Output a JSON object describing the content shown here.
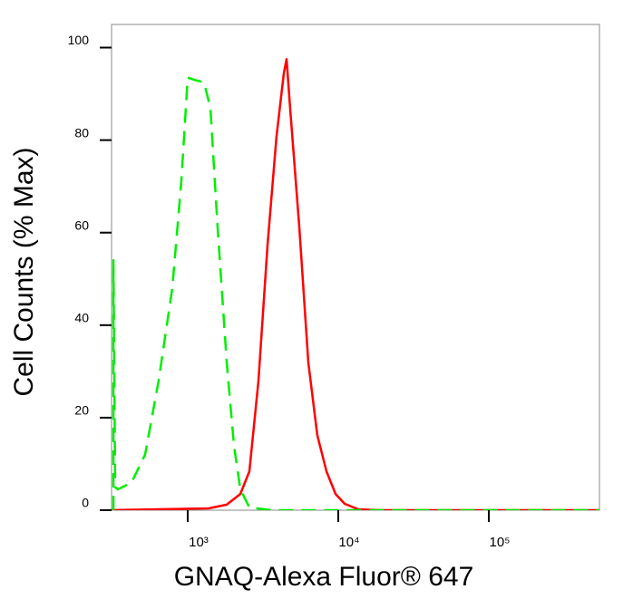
{
  "chart_data": {
    "type": "line",
    "xscale": "log",
    "xlabel": "GNAQ-Alexa Fluor® 647",
    "ylabel": "Cell Counts (% Max)",
    "xlim": [
      312,
      543000
    ],
    "ylim": [
      0,
      105
    ],
    "xticks": [
      {
        "value": 1000,
        "label": "10³"
      },
      {
        "value": 10000,
        "label": "10⁴"
      },
      {
        "value": 100000,
        "label": "10⁵"
      }
    ],
    "yticks": [
      0,
      20,
      40,
      60,
      80,
      100
    ],
    "series": [
      {
        "color": "#ff0000",
        "dash": "solid",
        "x": [
          312,
          1376,
          1817,
          2235,
          2570,
          2951,
          3388,
          3890,
          4350,
          4535,
          4797,
          5508,
          6324,
          7263,
          8356,
          9594,
          11020,
          13580,
          19190,
          543000
        ],
        "values": [
          0,
          0.4,
          1.2,
          3.5,
          8.4,
          28,
          57.3,
          80.8,
          94.5,
          97.5,
          86.7,
          61.3,
          31.9,
          16.2,
          8.4,
          3.5,
          1.4,
          0.2,
          0,
          0
        ]
      },
      {
        "color": "#00ee00",
        "dash": "dashed",
        "x": [
          321,
          321,
          330,
          344,
          424,
          521,
          641,
          790,
          907,
          1000,
          1117,
          1283,
          1415,
          1581,
          1817,
          2029,
          2235,
          2570,
          3634,
          14550,
          543000
        ],
        "values": [
          0,
          54,
          5,
          4.5,
          6,
          12,
          28,
          48,
          71,
          93.5,
          93,
          92.5,
          87,
          61,
          32,
          14,
          4.5,
          0.6,
          0,
          0,
          0
        ]
      }
    ]
  }
}
